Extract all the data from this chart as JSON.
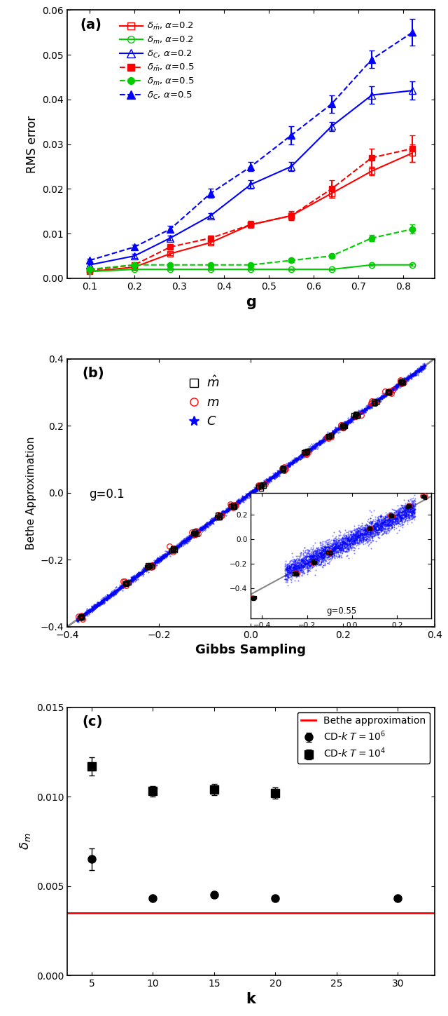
{
  "panel_a": {
    "g": [
      0.1,
      0.2,
      0.28,
      0.37,
      0.46,
      0.55,
      0.64,
      0.73,
      0.82
    ],
    "delta_mhat_02": [
      0.0015,
      0.0025,
      0.0055,
      0.008,
      0.012,
      0.014,
      0.019,
      0.024,
      0.028
    ],
    "delta_mhat_02_err": [
      0.0002,
      0.0002,
      0.0003,
      0.0004,
      0.0005,
      0.0008,
      0.001,
      0.001,
      0.002
    ],
    "delta_m_02": [
      0.0015,
      0.002,
      0.002,
      0.002,
      0.002,
      0.002,
      0.002,
      0.003,
      0.003
    ],
    "delta_m_02_err": [
      0.0001,
      0.0001,
      0.0001,
      0.0001,
      0.0001,
      0.0001,
      0.0001,
      0.0002,
      0.0002
    ],
    "delta_C_02": [
      0.003,
      0.005,
      0.009,
      0.014,
      0.021,
      0.025,
      0.034,
      0.041,
      0.042
    ],
    "delta_C_02_err": [
      0.0003,
      0.0004,
      0.0005,
      0.0006,
      0.001,
      0.001,
      0.001,
      0.002,
      0.002
    ],
    "delta_mhat_05": [
      0.0018,
      0.003,
      0.007,
      0.009,
      0.012,
      0.014,
      0.02,
      0.027,
      0.029
    ],
    "delta_mhat_05_err": [
      0.0002,
      0.0003,
      0.0004,
      0.0005,
      0.0008,
      0.001,
      0.002,
      0.002,
      0.003
    ],
    "delta_m_05": [
      0.002,
      0.003,
      0.003,
      0.003,
      0.003,
      0.004,
      0.005,
      0.009,
      0.011
    ],
    "delta_m_05_err": [
      0.0002,
      0.0003,
      0.0003,
      0.0003,
      0.0003,
      0.0004,
      0.0005,
      0.0007,
      0.001
    ],
    "delta_C_05": [
      0.004,
      0.007,
      0.011,
      0.019,
      0.025,
      0.032,
      0.039,
      0.049,
      0.055
    ],
    "delta_C_05_err": [
      0.0003,
      0.0005,
      0.0007,
      0.001,
      0.001,
      0.002,
      0.002,
      0.002,
      0.003
    ],
    "ylabel": "RMS error",
    "xlabel": "g",
    "ylim": [
      0.0,
      0.06
    ],
    "xlim": [
      0.05,
      0.87
    ],
    "label": "(a)"
  },
  "panel_b": {
    "diag_lim": [
      -0.45,
      0.42
    ],
    "xlabel": "Gibbs Sampling",
    "ylabel": "Bethe Approximation",
    "xlim": [
      -0.4,
      0.4
    ],
    "ylim": [
      -0.4,
      0.4
    ],
    "g_label": "g=0.1",
    "inset_g_label": "g=0.55",
    "label": "(b)"
  },
  "panel_c": {
    "k": [
      5,
      10,
      15,
      20,
      30
    ],
    "circle_vals": [
      0.0065,
      0.0043,
      0.0045,
      0.0043,
      0.0043
    ],
    "circle_errs": [
      0.0006,
      0.00015,
      0.00015,
      0.00015,
      0.00015
    ],
    "square_vals": [
      0.0117,
      0.0103,
      0.0104,
      0.0102
    ],
    "square_errs": [
      0.0005,
      0.0003,
      0.0003,
      0.0003
    ],
    "square_k": [
      5,
      10,
      15,
      20
    ],
    "bethe_line": 0.0035,
    "xlabel": "k",
    "ylim": [
      0.0,
      0.015
    ],
    "xlim": [
      3,
      33
    ],
    "label": "(c)"
  },
  "colors": {
    "red": "#FF0000",
    "green": "#00CC00",
    "blue": "#0000FF",
    "gray": "#888888",
    "black": "#000000"
  }
}
